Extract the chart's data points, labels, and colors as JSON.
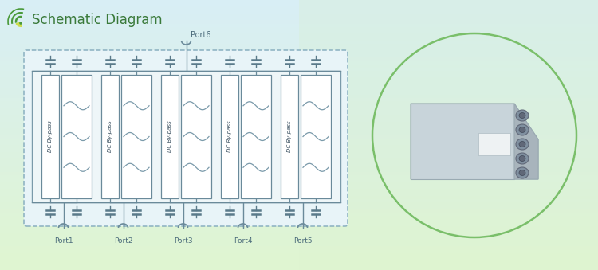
{
  "title": "Schematic Diagram",
  "port_labels": [
    "Port1",
    "Port2",
    "Port3",
    "Port4",
    "Port5"
  ],
  "port6_label": "Port6",
  "bg_color_top": "#d8eef5",
  "bg_color_bottom": "#e8f5d8",
  "schematic_fill": "#e8f4f8",
  "inner_fill": "#eef6f8",
  "box_edge": "#7a9aaa",
  "dc_box_edge": "#6a8a9a",
  "line_color": "#6a8a9a",
  "cap_color": "#5a7a8a",
  "wave_color": "#7a9aaa",
  "circle_color": "#7abf6a",
  "title_color": "#3a7a3a",
  "icon_color": "#4a9a3a",
  "port_text_color": "#4a6a7a",
  "dashed_color": "#8ab0c0"
}
